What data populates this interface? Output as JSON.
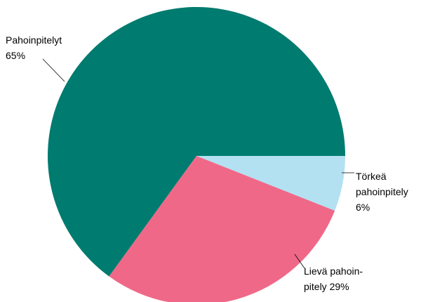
{
  "chart_data": {
    "type": "pie",
    "title": "",
    "slices": [
      {
        "name": "Törkeä pahoinpitely",
        "value": 6,
        "color": "#b3e1f2",
        "label_lines": [
          "Törkeä",
          "pahoinpitely",
          "6%"
        ]
      },
      {
        "name": "Lievä pahoinpitely",
        "value": 29,
        "color": "#f06888",
        "label_lines": [
          "Lievä pahoin-",
          "pitely 29%"
        ]
      },
      {
        "name": "Pahoinpitelyt",
        "value": 65,
        "color": "#007b6f",
        "label_lines": [
          "Pahoinpitelyt",
          "65%"
        ]
      }
    ]
  }
}
